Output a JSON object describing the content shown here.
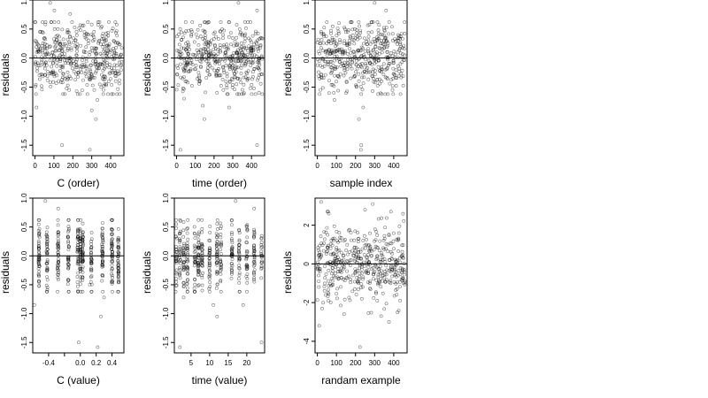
{
  "chart_data": [
    {
      "type": "scatter",
      "xlabel": "C (order)",
      "ylabel": "residuals",
      "xlim": [
        -12,
        470
      ],
      "ylim": [
        -1.68,
        1.0
      ],
      "xticks": [
        0,
        100,
        200,
        300,
        400
      ],
      "xtick_labels": [
        "0",
        "100",
        "200",
        "300",
        "400"
      ],
      "yticks": [
        -1.5,
        -1.0,
        -0.5,
        0.0,
        0.5,
        1.0
      ],
      "ytick_labels": [
        "-1.5",
        "-1.0",
        "-0.5",
        "0.0",
        "0.5",
        "1.0"
      ],
      "hline": 0,
      "n_points": 460,
      "x_range": [
        0,
        459
      ],
      "points": [
        [
          143,
          -1.5
        ],
        [
          290,
          -1.58
        ],
        [
          322,
          -1.05
        ],
        [
          300,
          -0.9
        ],
        [
          8,
          -0.85
        ],
        [
          80,
          0.95
        ],
        [
          186,
          0.76
        ],
        [
          102,
          0.82
        ],
        [
          330,
          -0.72
        ],
        [
          350,
          -0.5
        ]
      ]
    },
    {
      "type": "scatter",
      "xlabel": "time (order)",
      "ylabel": "residuals",
      "xlim": [
        -12,
        470
      ],
      "ylim": [
        -1.68,
        1.0
      ],
      "xticks": [
        0,
        100,
        200,
        300,
        400
      ],
      "xtick_labels": [
        "0",
        "100",
        "200",
        "300",
        "400"
      ],
      "yticks": [
        -1.5,
        -1.0,
        -0.5,
        0.0,
        0.5,
        1.0
      ],
      "ytick_labels": [
        "-1.5",
        "-1.0",
        "-0.5",
        "0.0",
        "0.5",
        "1.0"
      ],
      "hline": 0,
      "n_points": 460,
      "x_range": [
        0,
        459
      ],
      "points": [
        [
          20,
          -1.58
        ],
        [
          148,
          -1.05
        ],
        [
          430,
          -1.5
        ],
        [
          330,
          0.95
        ],
        [
          430,
          0.82
        ],
        [
          140,
          -0.82
        ],
        [
          280,
          -0.85
        ],
        [
          40,
          -0.7
        ],
        [
          360,
          -0.6
        ]
      ]
    },
    {
      "type": "scatter",
      "xlabel": "sample index",
      "ylabel": "residuals",
      "xlim": [
        -12,
        470
      ],
      "ylim": [
        -1.68,
        1.0
      ],
      "xticks": [
        0,
        100,
        200,
        300,
        400
      ],
      "xtick_labels": [
        "0",
        "100",
        "200",
        "300",
        "400"
      ],
      "yticks": [
        -1.5,
        -1.0,
        -0.5,
        0.0,
        0.5,
        1.0
      ],
      "ytick_labels": [
        "-1.5",
        "-1.0",
        "-0.5",
        "0.0",
        "0.5",
        "1.0"
      ],
      "hline": 0,
      "n_points": 460,
      "x_range": [
        0,
        459
      ],
      "points": [
        [
          230,
          -1.5
        ],
        [
          228,
          -1.58
        ],
        [
          218,
          -1.05
        ],
        [
          240,
          -0.85
        ],
        [
          300,
          0.95
        ],
        [
          360,
          0.82
        ],
        [
          90,
          -0.72
        ],
        [
          150,
          -0.6
        ]
      ]
    },
    {
      "type": "scatter",
      "xlabel": "C (value)",
      "ylabel": "residuals",
      "xlim": [
        -0.6,
        0.55
      ],
      "ylim": [
        -1.68,
        1.0
      ],
      "xticks": [
        -0.4,
        -0.2,
        0.0,
        0.2,
        0.4
      ],
      "xtick_labels": [
        "-0.4",
        "",
        "0.0",
        "0.2",
        "0.4"
      ],
      "yticks": [
        -1.5,
        -1.0,
        -0.5,
        0.0,
        0.5,
        1.0
      ],
      "ytick_labels": [
        "-1.5",
        "-1.0",
        "-0.5",
        "0.0",
        "0.5",
        "1.0"
      ],
      "hline": 0,
      "n_points": 460,
      "x_clusters": [
        -0.52,
        -0.42,
        -0.28,
        -0.15,
        -0.03,
        0.0,
        0.03,
        0.14,
        0.28,
        0.4,
        0.48
      ],
      "points": [
        [
          -0.02,
          -1.5
        ],
        [
          0.22,
          -1.58
        ],
        [
          0.26,
          -1.05
        ],
        [
          -0.58,
          -0.85
        ],
        [
          -0.44,
          0.95
        ],
        [
          -0.28,
          0.82
        ],
        [
          0.3,
          -0.72
        ],
        [
          0.12,
          -0.5
        ]
      ]
    },
    {
      "type": "scatter",
      "xlabel": "time (value)",
      "ylabel": "residuals",
      "xlim": [
        0.5,
        24.8
      ],
      "ylim": [
        -1.68,
        1.0
      ],
      "xticks": [
        5,
        10,
        15,
        20
      ],
      "xtick_labels": [
        "5",
        "10",
        "15",
        "20"
      ],
      "yticks": [
        -1.5,
        -1.0,
        -0.5,
        0.0,
        0.5,
        1.0
      ],
      "ytick_labels": [
        "-1.5",
        "-1.0",
        "-0.5",
        "0.0",
        "0.5",
        "1.0"
      ],
      "hline": 0,
      "n_points": 460,
      "x_clusters": [
        1,
        2,
        3,
        4,
        6,
        7,
        8,
        10,
        12,
        13,
        16,
        18,
        20,
        22,
        24
      ],
      "points": [
        [
          2,
          -1.58
        ],
        [
          12,
          -1.05
        ],
        [
          24,
          -1.5
        ],
        [
          17,
          0.95
        ],
        [
          22,
          0.82
        ],
        [
          11,
          -0.85
        ],
        [
          19,
          -0.85
        ],
        [
          3,
          -0.72
        ],
        [
          8,
          -0.6
        ]
      ]
    },
    {
      "type": "scatter",
      "xlabel": "randam example",
      "ylabel": "residuals",
      "xlim": [
        -12,
        470
      ],
      "ylim": [
        -4.6,
        3.4
      ],
      "xticks": [
        0,
        100,
        200,
        300,
        400
      ],
      "xtick_labels": [
        "0",
        "100",
        "200",
        "300",
        "400"
      ],
      "yticks": [
        -4,
        -2,
        0,
        2
      ],
      "ytick_labels": [
        "-4",
        "-2",
        "0",
        "2"
      ],
      "hline": 0,
      "n_points": 460,
      "x_range": [
        0,
        459
      ],
      "points": [
        [
          223,
          -4.3
        ],
        [
          20,
          3.2
        ],
        [
          290,
          3.1
        ],
        [
          10,
          -3.2
        ],
        [
          375,
          -3.0
        ],
        [
          250,
          2.8
        ],
        [
          140,
          -2.6
        ],
        [
          60,
          2.6
        ],
        [
          420,
          -2.5
        ]
      ]
    }
  ]
}
